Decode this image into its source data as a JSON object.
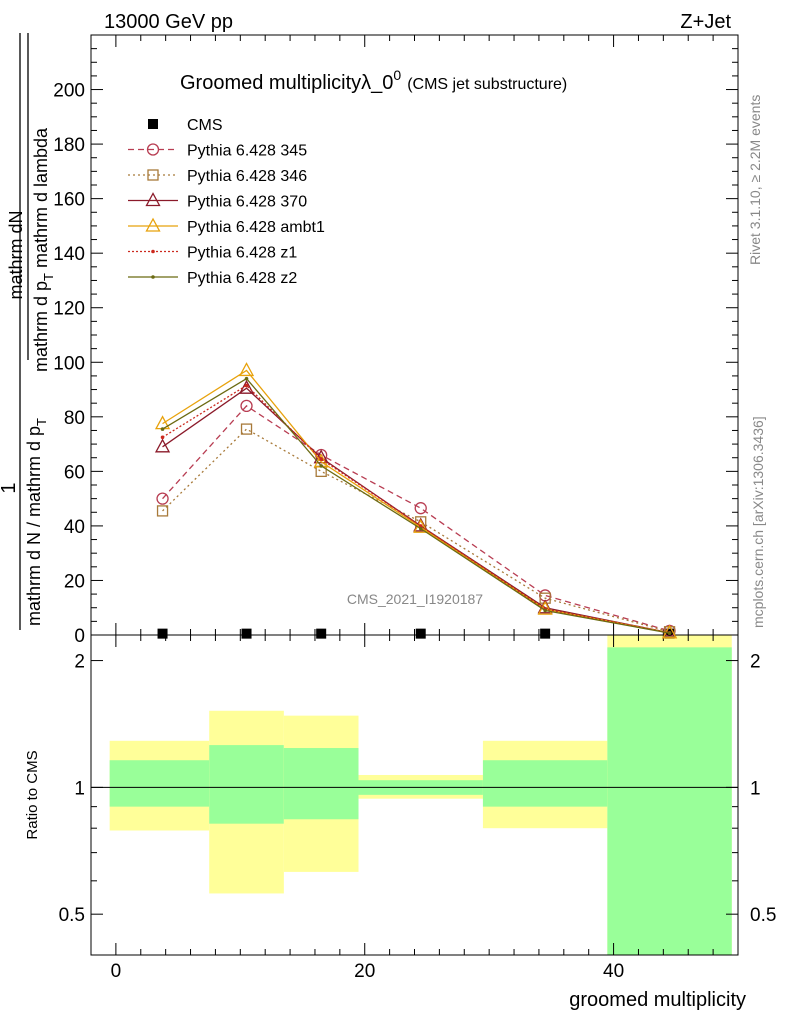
{
  "header": {
    "left": "13000 GeV pp",
    "right": "Z+Jet"
  },
  "title": {
    "main": "Groomed multiplicityλ_0",
    "sup": "0",
    "sub": "(CMS jet substructure)"
  },
  "side_labels": {
    "rivet_a": "Rivet 3.1.10, ",
    "rivet_b": "≥ 2.2M events",
    "mcplots": "mcplots.cern.ch [arXiv:1306.3436]"
  },
  "watermark": "CMS_2021_I1920187",
  "ylabel_top": {
    "numerator": "mathrm dN",
    "denominator_a": "mathrm d p",
    "denominator_a_sub": "T",
    "denominator_b": " mathrm d lambda",
    "one": "1",
    "one_denominator": "mathrm d N / mathrm d p",
    "one_denominator_sub": "T"
  },
  "chart_data": [
    {
      "type": "line",
      "xlim": [
        -2,
        50
      ],
      "ylim": [
        0,
        220
      ],
      "yticks": [
        0,
        20,
        40,
        60,
        80,
        100,
        120,
        140,
        160,
        180,
        200
      ],
      "ytick_labels": [
        "0",
        "20",
        "40",
        "60",
        "80",
        "100",
        "120",
        "140",
        "160",
        "180",
        "200"
      ],
      "legend_position": "top-left",
      "bins": [
        [
          0,
          7.5
        ],
        [
          7.5,
          13.5
        ],
        [
          13.5,
          19.5
        ],
        [
          19.5,
          29.5
        ],
        [
          29.5,
          39.5
        ],
        [
          39.5,
          49.5
        ]
      ],
      "series": [
        {
          "name": "CMS",
          "color": "#000000",
          "marker": "square-filled",
          "dash": "none",
          "x": [
            3.75,
            10.5,
            16.5,
            24.5,
            34.5,
            44.5
          ],
          "values": [
            0.5,
            0.5,
            0.5,
            0.5,
            0.5,
            0.5
          ]
        },
        {
          "name": "Pythia 6.428 345",
          "color": "#b83d52",
          "marker": "circle-open",
          "dash": "6,4",
          "x": [
            3.75,
            10.5,
            16.5,
            24.5,
            34.5,
            44.5
          ],
          "values": [
            50,
            84,
            66,
            46.5,
            14.5,
            1.5
          ]
        },
        {
          "name": "Pythia 6.428 346",
          "color": "#a87a3a",
          "marker": "square-open",
          "dash": "2,3",
          "x": [
            3.75,
            10.5,
            16.5,
            24.5,
            34.5,
            44.5
          ],
          "values": [
            45.5,
            75.5,
            60,
            41.5,
            13.5,
            1.2
          ]
        },
        {
          "name": "Pythia 6.428 370",
          "color": "#8b1a2a",
          "marker": "triangle-open",
          "dash": "none",
          "x": [
            3.75,
            10.5,
            16.5,
            24.5,
            34.5,
            44.5
          ],
          "values": [
            69,
            90.5,
            65,
            40,
            10,
            0.8
          ]
        },
        {
          "name": "Pythia 6.428 ambt1",
          "color": "#e8a20c",
          "marker": "triangle-open",
          "dash": "none",
          "x": [
            3.75,
            10.5,
            16.5,
            24.5,
            34.5,
            44.5
          ],
          "values": [
            77.5,
            97,
            63.5,
            39.5,
            9.5,
            0.8
          ]
        },
        {
          "name": "Pythia 6.428 z1",
          "color": "#cc2a1f",
          "marker": "dot",
          "dash": "2,2",
          "x": [
            3.75,
            10.5,
            16.5,
            24.5,
            34.5,
            44.5
          ],
          "values": [
            72.5,
            91.5,
            64.5,
            40,
            9.5,
            0.8
          ]
        },
        {
          "name": "Pythia 6.428 z2",
          "color": "#6b6a12",
          "marker": "dot",
          "dash": "none",
          "x": [
            3.75,
            10.5,
            16.5,
            24.5,
            34.5,
            44.5
          ],
          "values": [
            75.5,
            94,
            62,
            39,
            9,
            0.7
          ]
        }
      ]
    },
    {
      "type": "area",
      "ylabel": "Ratio to CMS",
      "xlabel": "groomed multiplicity",
      "log_y": true,
      "ylim": [
        0.4,
        2.3
      ],
      "xlim": [
        -2,
        50
      ],
      "yticks": [
        0.5,
        1,
        2
      ],
      "ytick_labels": [
        "0.5",
        "1",
        "2"
      ],
      "xticks": [
        0,
        20,
        40
      ],
      "xtick_labels": [
        "0",
        "20",
        "40"
      ],
      "reference_line": 1,
      "yellow_color": "#ffff99",
      "green_color": "#99ff99",
      "bands": [
        {
          "x0": -0.5,
          "x1": 7.5,
          "yellow": [
            0.79,
            1.29
          ],
          "green": [
            0.9,
            1.16
          ]
        },
        {
          "x0": 7.5,
          "x1": 13.5,
          "yellow": [
            0.56,
            1.52
          ],
          "green": [
            0.82,
            1.26
          ]
        },
        {
          "x0": 13.5,
          "x1": 19.5,
          "yellow": [
            0.63,
            1.48
          ],
          "green": [
            0.84,
            1.24
          ]
        },
        {
          "x0": 19.5,
          "x1": 29.5,
          "yellow": [
            0.94,
            1.07
          ],
          "green": [
            0.96,
            1.04
          ]
        },
        {
          "x0": 29.5,
          "x1": 39.5,
          "yellow": [
            0.8,
            1.29
          ],
          "green": [
            0.9,
            1.16
          ]
        },
        {
          "x0": 39.5,
          "x1": 49.5,
          "yellow": [
            0.4,
            2.3
          ],
          "green": [
            0.4,
            2.15
          ]
        }
      ]
    }
  ]
}
